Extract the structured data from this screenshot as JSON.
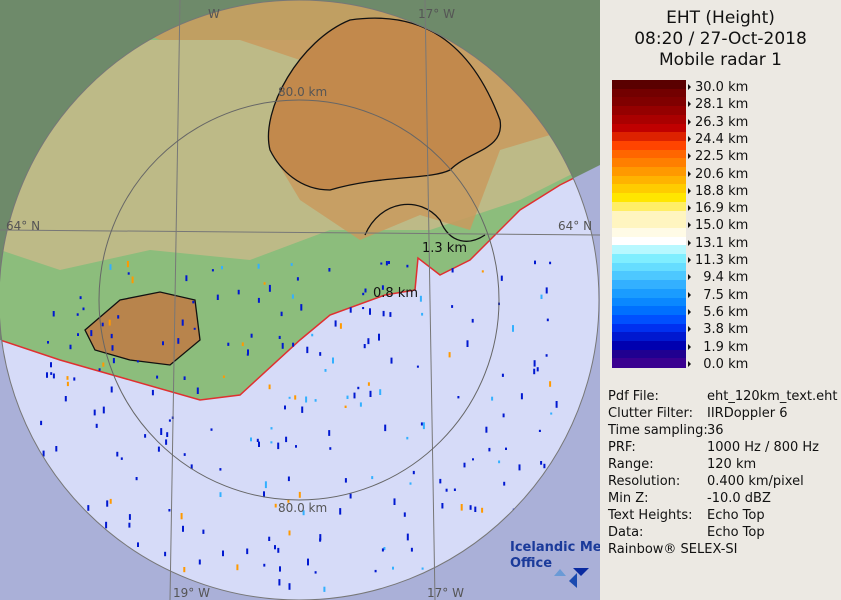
{
  "header": {
    "title": "EHT (Height)",
    "datetime": "08:20 / 27-Oct-2018",
    "radar": "Mobile radar 1"
  },
  "legend": {
    "labels": [
      "30.0 km",
      "28.1 km",
      "26.3 km",
      "24.4 km",
      "22.5 km",
      "20.6 km",
      "18.8 km",
      "16.9 km",
      "15.0 km",
      "13.1 km",
      "11.3 km",
      "9.4 km",
      "7.5 km",
      "5.6 km",
      "3.8 km",
      "1.9 km",
      "0.0 km"
    ],
    "colors": [
      "#5a0000",
      "#730000",
      "#800000",
      "#950000",
      "#aa0000",
      "#c00000",
      "#dd2200",
      "#ff4400",
      "#ff6600",
      "#ff7f00",
      "#ff9900",
      "#ffb300",
      "#ffcc00",
      "#ffe600",
      "#ffee66",
      "#fff5c0",
      "#fff5c0",
      "#fffbe6",
      "#ffffff",
      "#b8f8ff",
      "#80eeff",
      "#66ddff",
      "#4dc8ff",
      "#33b0ff",
      "#1a9cff",
      "#0a88ff",
      "#0070ff",
      "#0050ff",
      "#0030f0",
      "#0018d0",
      "#0000b0",
      "#200090",
      "#3a0090"
    ]
  },
  "info": [
    {
      "k": "Pdf File:",
      "v": "eht_120km_text.eht"
    },
    {
      "k": "Clutter Filter:",
      "v": "IIRDoppler 6"
    },
    {
      "k": "Time sampling:",
      "v": "36"
    },
    {
      "k": "PRF:",
      "v": "1000 Hz / 800 Hz"
    },
    {
      "k": "Range:",
      "v": "120 km"
    },
    {
      "k": "Resolution:",
      "v": "0.400 km/pixel"
    },
    {
      "k": "Min Z:",
      "v": "-10.0 dBZ"
    },
    {
      "k": "Text Heights:",
      "v": "Echo Top"
    },
    {
      "k": "Data:",
      "v": "Echo Top"
    }
  ],
  "footer": "Rainbow® SELEX-SI",
  "map": {
    "lon_top_left": "W",
    "lon_top_right": "17° W",
    "lon_bottom_left": "19° W",
    "lon_bottom_right": "17° W",
    "lat_left": "64° N",
    "lat_right": "64° N",
    "range_top": "80.0 km",
    "range_bottom": "80.0 km",
    "echo_label_1": "1.3 km",
    "echo_label_2": "0.8 km",
    "logo_line1": "Icelandic Met",
    "logo_line2": "Office"
  }
}
